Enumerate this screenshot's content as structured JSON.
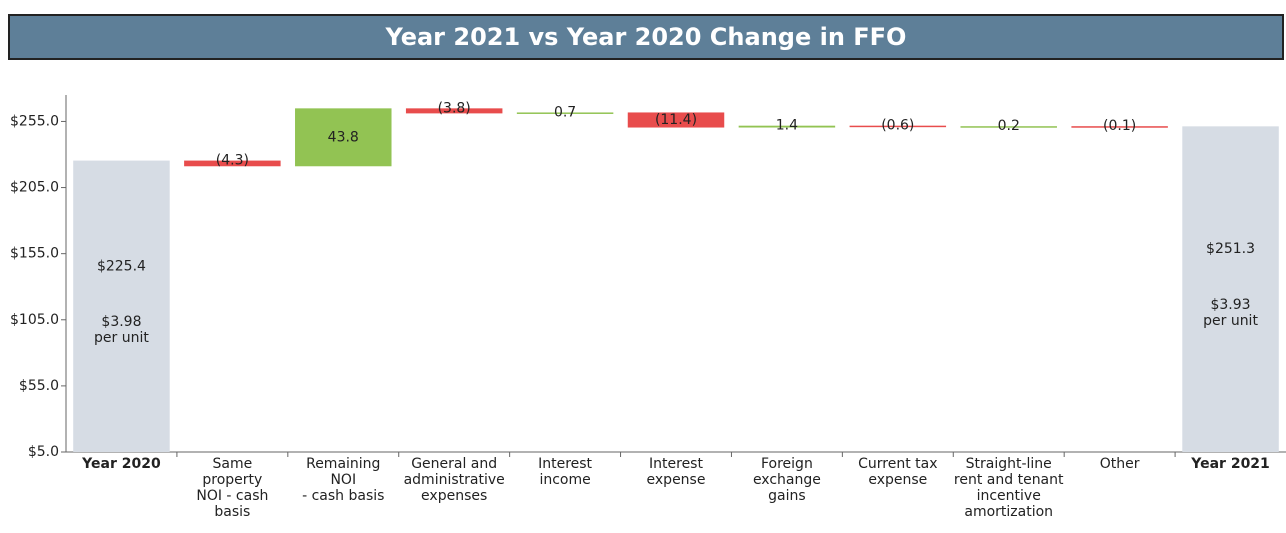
{
  "chart_data": {
    "type": "waterfall",
    "title": "Year 2021 vs Year 2020 Change in FFO",
    "categories": [
      "Year 2020",
      "Same\nproperty\nNOI - cash\nbasis",
      "Remaining\nNOI\n- cash basis",
      "General and\nadministrative\nexpenses",
      "Interest\nincome",
      "Interest\nexpense",
      "Foreign\nexchange\ngains",
      "Current tax\nexpense",
      "Straight-line\nrent and tenant\nincentive\namortization",
      "Other",
      "Year 2021"
    ],
    "measure": [
      "total",
      "relative",
      "relative",
      "relative",
      "relative",
      "relative",
      "relative",
      "relative",
      "relative",
      "relative",
      "total"
    ],
    "values": [
      225.4,
      -4.3,
      43.8,
      -3.8,
      0.7,
      -11.4,
      1.4,
      -0.6,
      0.2,
      -0.1,
      251.3
    ],
    "value_labels": [
      "$225.4",
      "(4.3)",
      "43.8",
      "(3.8)",
      "0.7",
      "(11.4)",
      "1.4",
      "(0.6)",
      "0.2",
      "(0.1)",
      "$251.3"
    ],
    "per_unit_labels": [
      "$3.98\nper unit",
      null,
      null,
      null,
      null,
      null,
      null,
      null,
      null,
      null,
      "$3.93\nper unit"
    ],
    "colors": {
      "total": "#d6dce4",
      "increase": "#92c353",
      "decrease": "#e84c4c"
    },
    "ylim": [
      5,
      275
    ],
    "yticks": [
      {
        "value": 5,
        "label": "$5.0"
      },
      {
        "value": 55,
        "label": "$55.0"
      },
      {
        "value": 105,
        "label": "$105.0"
      },
      {
        "value": 155,
        "label": "$155.0"
      },
      {
        "value": 205,
        "label": "$205.0"
      },
      {
        "value": 255,
        "label": "$255.0"
      }
    ]
  }
}
